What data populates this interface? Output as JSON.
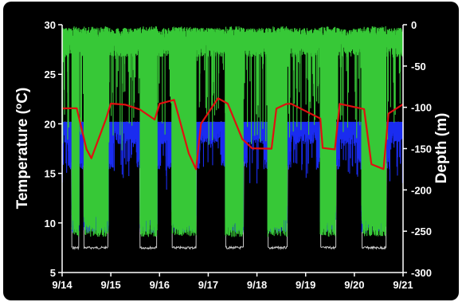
{
  "chart_data": {
    "type": "line",
    "xlabel": "",
    "ylabel_left": "Temperature (°C)",
    "ylabel_left_parts": [
      "Temperature (",
      "o",
      "C)"
    ],
    "ylabel_right": "Depth (m)",
    "x_tick_labels": [
      "9/14",
      "9/15",
      "9/16",
      "9/17",
      "9/18",
      "9/19",
      "9/20",
      "9/21"
    ],
    "xlim_days": [
      0,
      7
    ],
    "y_left_ticks": [
      5,
      10,
      15,
      20,
      25,
      30
    ],
    "y_left_range": [
      5,
      30
    ],
    "y_right_ticks": [
      0,
      -50,
      -100,
      -150,
      -200,
      -250,
      -300
    ],
    "y_right_range": [
      -300,
      0
    ],
    "grid": false,
    "background": "#000000",
    "series": [
      {
        "axis": "right",
        "color": "#37c837",
        "style": "depth (green)",
        "dive_periods": [
          [
            0.2,
            0.35
          ],
          [
            0.45,
            0.95
          ],
          [
            1.6,
            1.95
          ],
          [
            2.25,
            2.75
          ],
          [
            3.35,
            3.72
          ],
          [
            4.22,
            4.62
          ],
          [
            5.3,
            5.62
          ],
          [
            6.15,
            6.65
          ]
        ],
        "surface_depth": -15,
        "dive_depth": -230
      },
      {
        "axis": "left",
        "color": "#e01010",
        "style": "temperature (red)",
        "x": [
          0,
          0.3,
          0.5,
          0.6,
          0.9,
          1.0,
          1.3,
          1.6,
          1.9,
          2.0,
          2.3,
          2.6,
          2.75,
          2.85,
          3.2,
          3.4,
          3.7,
          3.9,
          4.3,
          4.4,
          4.6,
          4.7,
          5.3,
          5.35,
          5.6,
          5.7,
          6.2,
          6.35,
          6.6,
          6.7,
          7.0
        ],
        "y": [
          21.5,
          21.5,
          17.5,
          16.5,
          20.5,
          22,
          22,
          21.5,
          20.5,
          22,
          22.5,
          17,
          15.5,
          20,
          22.5,
          22,
          18.5,
          17.5,
          17.5,
          21.5,
          22,
          22,
          20.5,
          17.5,
          17.5,
          22,
          21.5,
          16,
          15.5,
          21,
          22
        ]
      },
      {
        "axis": "left",
        "color": "#1a2cf0",
        "style": "temperature band (blue)",
        "top": 20.2,
        "low_during_dive": 9
      },
      {
        "axis": "left",
        "color": "#c8c8c8",
        "style": "ambient (gray)",
        "night_value": 7.5,
        "day_value": 20
      }
    ]
  }
}
